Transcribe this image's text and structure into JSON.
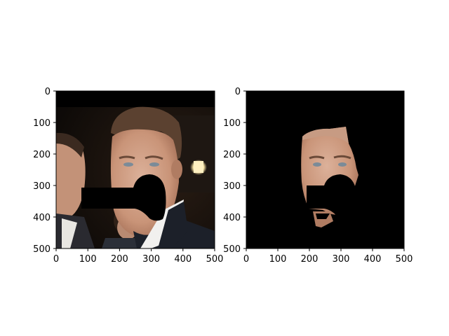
{
  "figure": {
    "background": "#ffffff"
  },
  "chart_data": [
    {
      "type": "image",
      "panel": "left",
      "content": "photograph of a man's face with a black mask region over the mouth area",
      "xlim": [
        0,
        500
      ],
      "ylim": [
        500,
        0
      ],
      "xticks": [
        0,
        100,
        200,
        300,
        400,
        500
      ],
      "yticks": [
        0,
        100,
        200,
        300,
        400,
        500
      ],
      "title": "",
      "xlabel": "",
      "ylabel": ""
    },
    {
      "type": "image",
      "panel": "right",
      "content": "segmented face region of the same photo on black background, mouth area masked",
      "xlim": [
        0,
        500
      ],
      "ylim": [
        500,
        0
      ],
      "xticks": [
        0,
        100,
        200,
        300,
        400,
        500
      ],
      "yticks": [
        0,
        100,
        200,
        300,
        400,
        500
      ],
      "title": "",
      "xlabel": "",
      "ylabel": ""
    }
  ],
  "colors": {
    "axis": "#000000",
    "mask": "#000000",
    "suit": "#1c2029",
    "background_dark": "#120e0b",
    "skin": "#cfa088",
    "hair": "#5b4130",
    "shirt": "#f1f0ee",
    "light": "#fff2c8"
  }
}
